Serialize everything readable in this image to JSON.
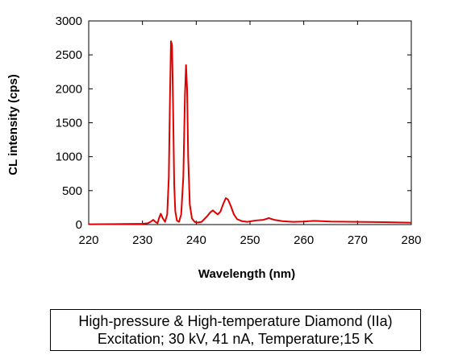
{
  "chart_data": {
    "type": "line",
    "title": "",
    "xlabel": "Wavelength (nm)",
    "ylabel": "CL intensity (cps)",
    "xlim": [
      220,
      280
    ],
    "ylim": [
      0,
      3000
    ],
    "xticks": [
      220,
      230,
      240,
      250,
      260,
      270,
      280
    ],
    "yticks": [
      0,
      500,
      1000,
      1500,
      2000,
      2500,
      3000
    ],
    "grid": false,
    "legend": "none",
    "series": [
      {
        "color": "#e00000",
        "x": [
          220,
          225,
          230,
          231,
          231.5,
          232,
          232.4,
          232.8,
          233.1,
          233.4,
          233.8,
          234.2,
          234.6,
          234.9,
          235.1,
          235.3,
          235.5,
          235.7,
          235.9,
          236.1,
          236.4,
          236.8,
          237.2,
          237.6,
          237.9,
          238.1,
          238.3,
          238.5,
          238.8,
          239.2,
          239.7,
          240.2,
          241,
          242,
          242.6,
          243.1,
          243.5,
          244,
          244.5,
          245,
          245.5,
          245.9,
          246.4,
          247,
          247.6,
          248.5,
          249.5,
          251,
          252.5,
          253.5,
          254.5,
          256,
          258,
          260,
          262,
          265,
          270,
          275,
          280
        ],
        "y": [
          5,
          8,
          12,
          20,
          40,
          70,
          40,
          20,
          100,
          160,
          90,
          40,
          150,
          700,
          1800,
          2700,
          2650,
          1700,
          600,
          200,
          60,
          40,
          150,
          700,
          1900,
          2350,
          2000,
          1000,
          300,
          90,
          40,
          30,
          40,
          120,
          180,
          210,
          180,
          150,
          190,
          300,
          390,
          370,
          280,
          150,
          80,
          50,
          40,
          60,
          70,
          95,
          70,
          50,
          40,
          45,
          55,
          45,
          40,
          35,
          28
        ]
      }
    ]
  },
  "caption": {
    "line1": "High-pressure & High-temperature Diamond (IIa)",
    "line2": "Excitation; 30 kV, 41 nA, Temperature;15 K"
  }
}
